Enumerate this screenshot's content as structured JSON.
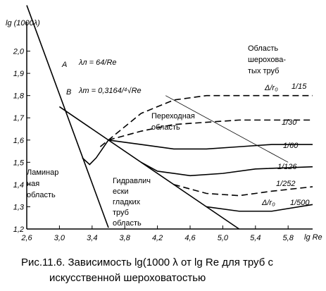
{
  "chart_data": {
    "type": "line",
    "y_label": "lg (1000λ)",
    "x_label": "lg Re",
    "caption": [
      "Рис.11.6. Зависимость lg(1000 λ от lg Re для труб с",
      "искусственной  шероховатостью"
    ],
    "annotations": [
      "Область",
      "шерохова-",
      "тых труб",
      "Δ/r₀",
      "Δ/r₀",
      "Переходная",
      "область",
      "Ламинар",
      "ная",
      "область",
      "Гидравлич",
      "ески",
      "гладких",
      "труб",
      "область",
      "λл = 64/Re",
      "λт = 0,3164/⁴√Re"
    ],
    "xlim": [
      2.6,
      6.1
    ],
    "ylim": [
      1.2,
      2.1
    ],
    "xticks": [
      {
        "value": 2.6,
        "label": "2,6"
      },
      {
        "value": 3.0,
        "label": "3,0"
      },
      {
        "value": 3.4,
        "label": "3,4"
      },
      {
        "value": 3.8,
        "label": "3,8"
      },
      {
        "value": 4.2,
        "label": "4,2"
      },
      {
        "value": 4.6,
        "label": "4,6"
      },
      {
        "value": 5.0,
        "label": "5,0"
      },
      {
        "value": 5.4,
        "label": "5,4"
      },
      {
        "value": 5.8,
        "label": "5,8"
      }
    ],
    "yticks": [
      {
        "value": 1.2,
        "label": "1,2"
      },
      {
        "value": 1.3,
        "label": "1,3"
      },
      {
        "value": 1.4,
        "label": "1,4"
      },
      {
        "value": 1.5,
        "label": "1,5"
      },
      {
        "value": 1.6,
        "label": "1,6"
      },
      {
        "value": 1.7,
        "label": "1,7"
      },
      {
        "value": 1.8,
        "label": "1,8"
      },
      {
        "value": 1.9,
        "label": "1,9"
      },
      {
        "value": 2.0,
        "label": "2,0"
      }
    ],
    "grid": false,
    "series": [
      {
        "name": "A",
        "color": "#000000",
        "dash": false,
        "x": [
          2.6,
          3.6
        ],
        "values": [
          2.206,
          1.206
        ]
      },
      {
        "name": "B",
        "color": "#000000",
        "dash": false,
        "x": [
          3.0,
          5.2
        ],
        "values": [
          1.75,
          1.2
        ]
      },
      {
        "color": "#000000",
        "dash": false,
        "x": [
          3.28,
          3.37,
          3.45,
          3.6
        ],
        "values": [
          1.52,
          1.49,
          1.52,
          1.6
        ]
      },
      {
        "color": "#000000",
        "dash": false,
        "x": [
          4.3,
          5.8
        ],
        "values": [
          1.8,
          1.5
        ]
      },
      {
        "name": "1/15",
        "color": "#000000",
        "dash": true,
        "x": [
          3.5,
          4.0,
          4.4,
          4.8,
          6.1
        ],
        "values": [
          1.57,
          1.72,
          1.78,
          1.8,
          1.8
        ]
      },
      {
        "name": "1/30",
        "color": "#000000",
        "dash": true,
        "x": [
          3.6,
          4.0,
          4.4,
          4.8,
          5.2,
          6.1
        ],
        "values": [
          1.6,
          1.64,
          1.67,
          1.68,
          1.69,
          1.69
        ]
      },
      {
        "name": "1/60",
        "color": "#000000",
        "dash": false,
        "x": [
          3.6,
          4.0,
          4.4,
          4.8,
          5.2,
          5.6,
          6.1
        ],
        "values": [
          1.6,
          1.58,
          1.56,
          1.56,
          1.57,
          1.58,
          1.58
        ]
      },
      {
        "name": "1/126",
        "color": "#000000",
        "dash": false,
        "x": [
          4.0,
          4.2,
          4.6,
          5.0,
          5.4,
          6.1
        ],
        "values": [
          1.5,
          1.46,
          1.44,
          1.45,
          1.47,
          1.48
        ]
      },
      {
        "name": "1/252",
        "color": "#000000",
        "dash": true,
        "x": [
          4.4,
          4.8,
          5.2,
          5.6,
          6.1
        ],
        "values": [
          1.4,
          1.36,
          1.35,
          1.37,
          1.39
        ]
      },
      {
        "name": "1/500",
        "color": "#000000",
        "dash": false,
        "x": [
          4.8,
          5.2,
          5.6,
          6.1
        ],
        "values": [
          1.3,
          1.28,
          1.28,
          1.31
        ]
      }
    ]
  }
}
